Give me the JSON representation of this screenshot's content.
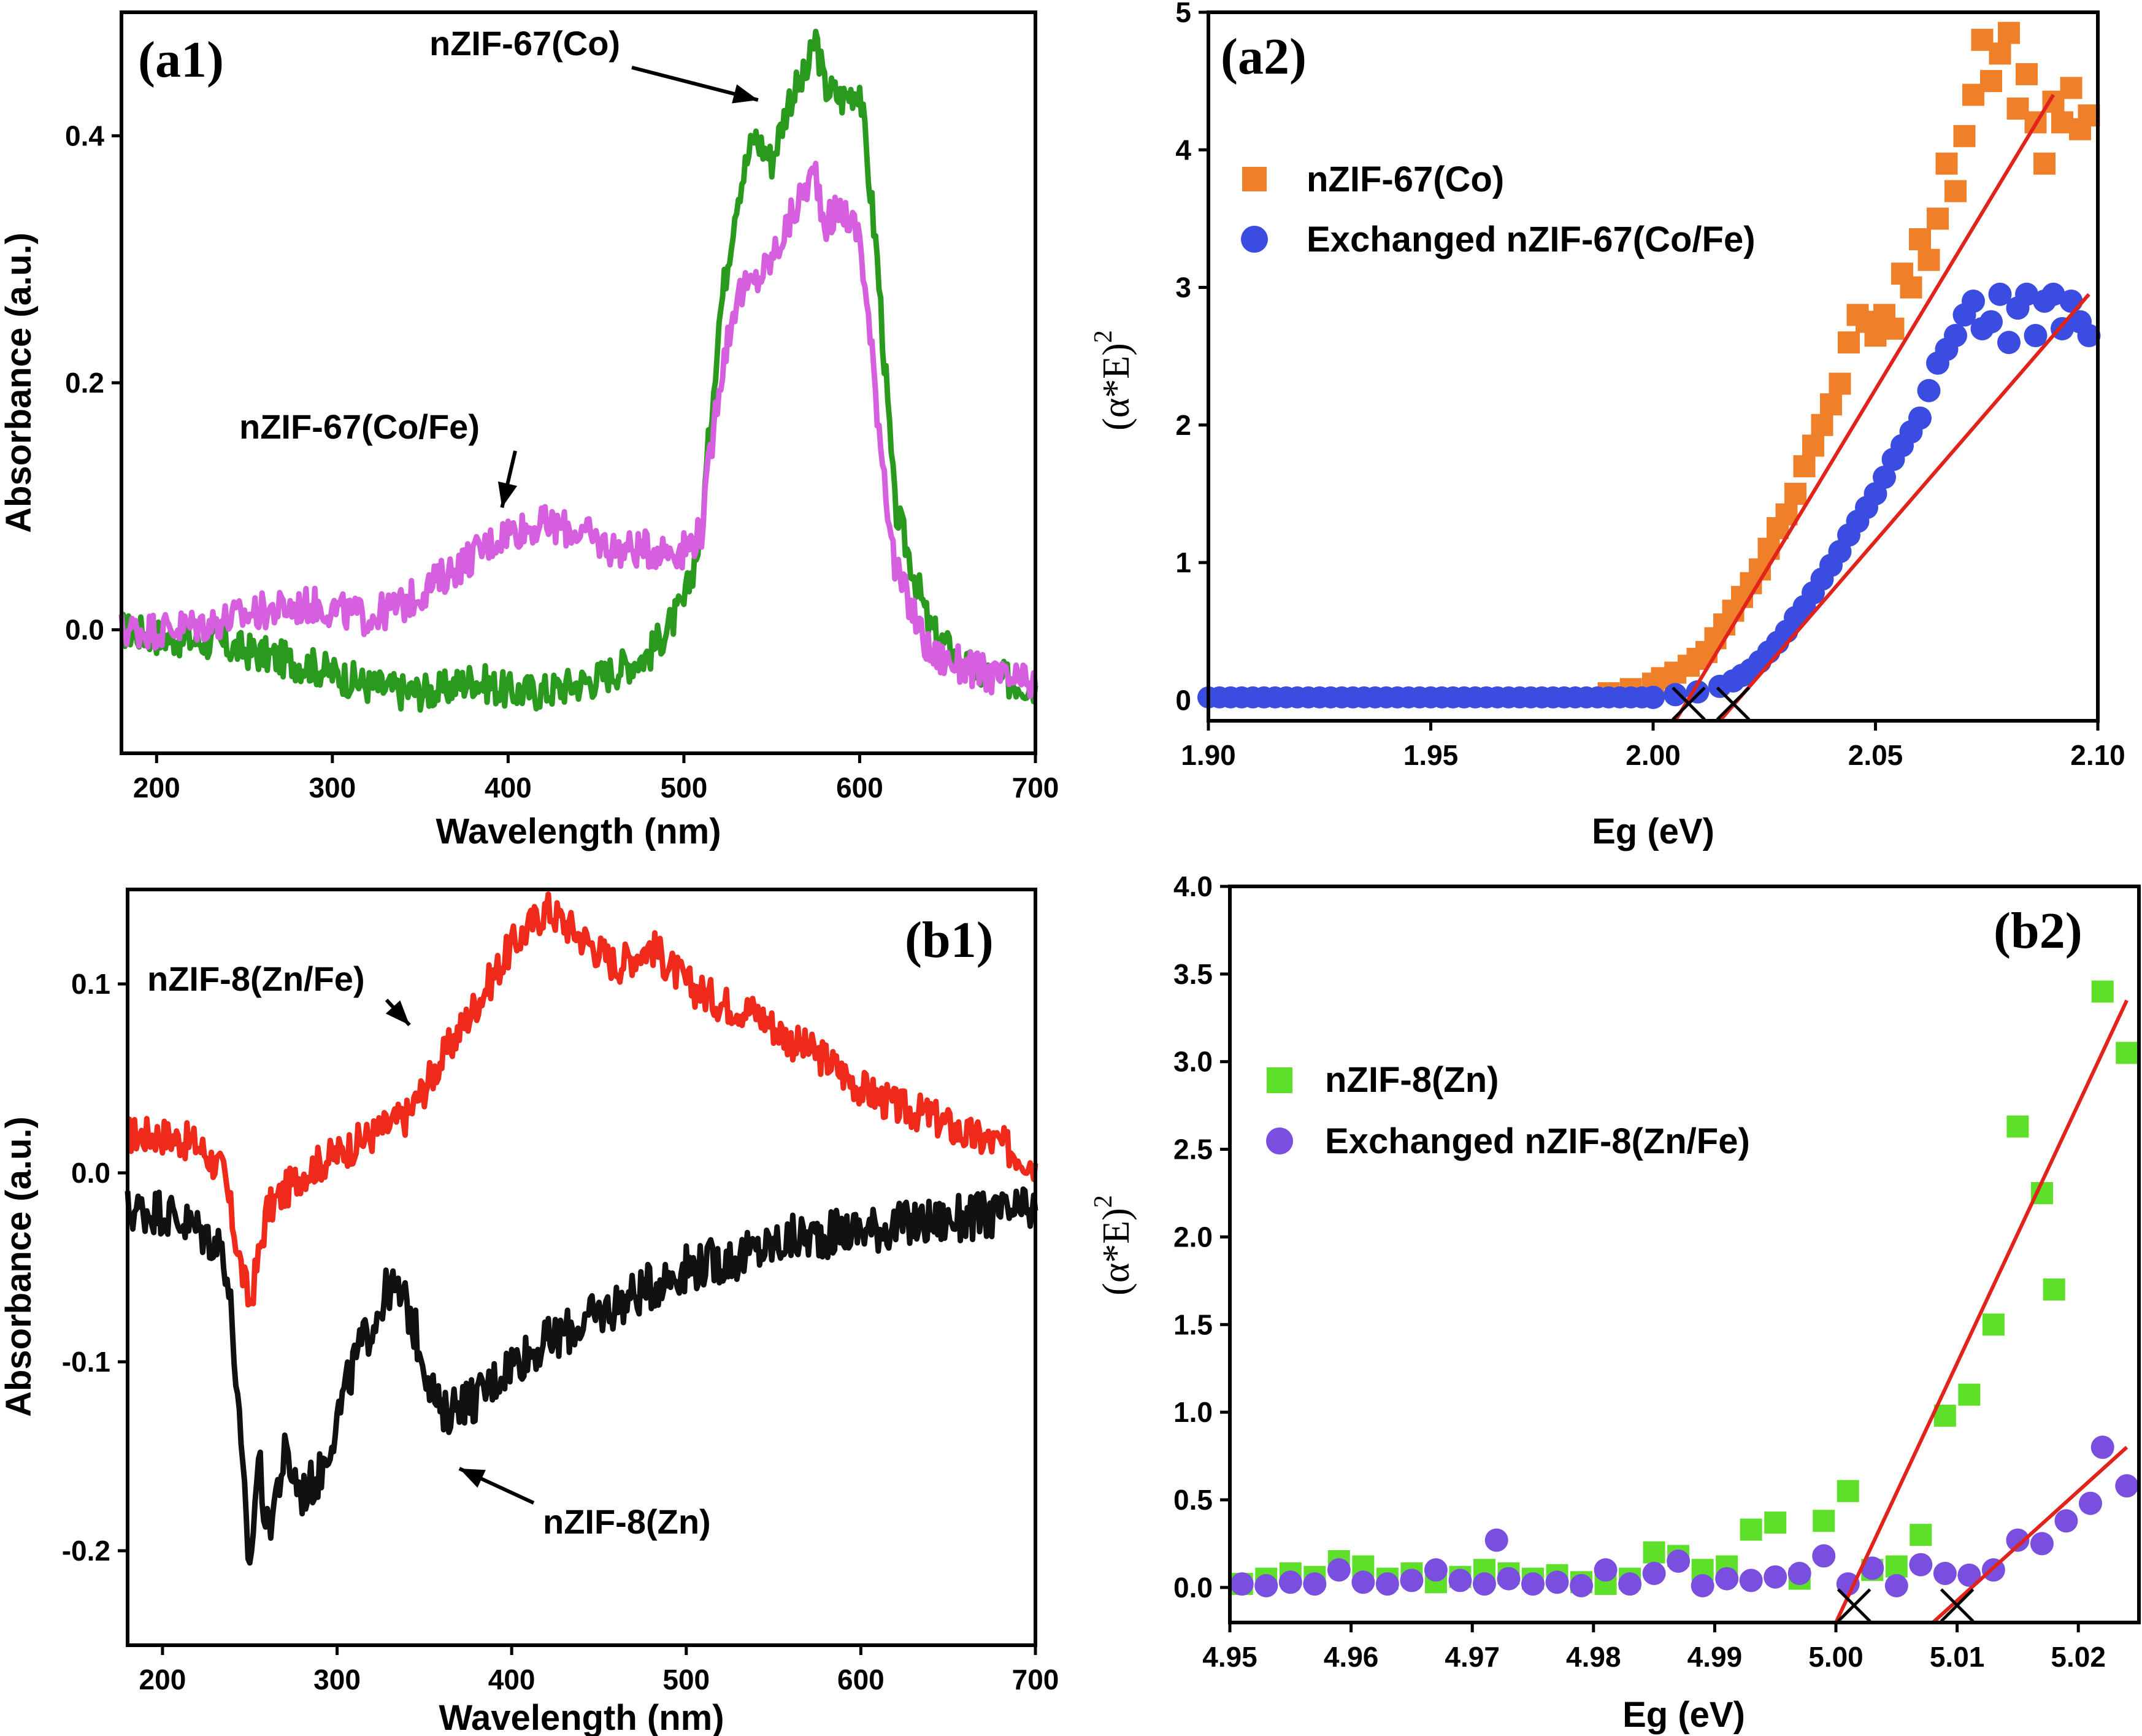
{
  "chart_data": [
    {
      "id": "a1",
      "type": "line",
      "panel_label": "(a1)",
      "xlabel": "Wavelength (nm)",
      "ylabel": "Absorbance (a.u.)",
      "xlim": [
        180,
        700
      ],
      "ylim": [
        -0.1,
        0.5
      ],
      "xticks": [
        200,
        300,
        400,
        500,
        600,
        700
      ],
      "yticks": [
        0.0,
        0.2,
        0.4
      ],
      "ytick_labels": [
        "0.0",
        "0.2",
        "0.4"
      ],
      "series": [
        {
          "name": "nZIF-67(Co)",
          "color": "#2a9a1f",
          "x": [
            180,
            200,
            230,
            260,
            290,
            320,
            340,
            360,
            380,
            400,
            420,
            450,
            480,
            500,
            510,
            520,
            530,
            540,
            550,
            560,
            570,
            575,
            580,
            590,
            600,
            610,
            620,
            640,
            660,
            680,
            700
          ],
          "y": [
            0.0,
            -0.005,
            -0.01,
            -0.02,
            -0.03,
            -0.045,
            -0.05,
            -0.05,
            -0.04,
            -0.05,
            -0.05,
            -0.04,
            -0.02,
            0.02,
            0.08,
            0.25,
            0.35,
            0.4,
            0.38,
            0.43,
            0.45,
            0.48,
            0.44,
            0.43,
            0.44,
            0.3,
            0.1,
            0.0,
            -0.03,
            -0.04,
            -0.045
          ]
        },
        {
          "name": "nZIF-67(Co/Fe)",
          "color": "#d65fe0",
          "x": [
            180,
            200,
            230,
            260,
            290,
            320,
            340,
            360,
            380,
            400,
            420,
            440,
            460,
            480,
            500,
            510,
            520,
            530,
            540,
            550,
            560,
            570,
            575,
            580,
            590,
            600,
            610,
            620,
            640,
            660,
            680,
            700
          ],
          "y": [
            0.0,
            0.0,
            0.005,
            0.015,
            0.02,
            0.01,
            0.02,
            0.04,
            0.06,
            0.08,
            0.085,
            0.08,
            0.065,
            0.065,
            0.065,
            0.08,
            0.2,
            0.27,
            0.28,
            0.3,
            0.33,
            0.36,
            0.37,
            0.33,
            0.34,
            0.32,
            0.18,
            0.05,
            -0.02,
            -0.03,
            -0.04,
            -0.045
          ]
        }
      ],
      "annotations": [
        {
          "text": "nZIF-67(Co)",
          "target": [
            545,
            0.425
          ]
        },
        {
          "text": "nZIF-67(Co/Fe)",
          "target": [
            400,
            0.093
          ]
        }
      ]
    },
    {
      "id": "a2",
      "type": "scatter",
      "panel_label": "(a2)",
      "xlabel": "Eg (eV)",
      "ylabel": "(α*E)",
      "ylabel_sup": "2",
      "xlim": [
        1.9,
        2.1
      ],
      "ylim": [
        -0.15,
        5
      ],
      "xticks": [
        1.9,
        1.95,
        2.0,
        2.05,
        2.1
      ],
      "xtick_labels": [
        "1.90",
        "1.95",
        "2.00",
        "2.05",
        "2.10"
      ],
      "yticks": [
        0,
        1,
        2,
        3,
        4,
        5
      ],
      "series": [
        {
          "name": "nZIF-67(Co)",
          "color": "#f07f2a",
          "marker": "square",
          "x": [
            1.99,
            1.995,
            2.0,
            2.002,
            2.005,
            2.008,
            2.01,
            2.012,
            2.014,
            2.016,
            2.018,
            2.02,
            2.022,
            2.024,
            2.026,
            2.028,
            2.03,
            2.032,
            2.034,
            2.036,
            2.038,
            2.04,
            2.042,
            2.044,
            2.046,
            2.048,
            2.05,
            2.052,
            2.054,
            2.056,
            2.058,
            2.06,
            2.062,
            2.064,
            2.066,
            2.068,
            2.07,
            2.072,
            2.074,
            2.076,
            2.078,
            2.08,
            2.082,
            2.084,
            2.086,
            2.088,
            2.09,
            2.092,
            2.094,
            2.096,
            2.098
          ],
          "y": [
            0.05,
            0.08,
            0.12,
            0.16,
            0.2,
            0.25,
            0.3,
            0.35,
            0.45,
            0.55,
            0.65,
            0.75,
            0.85,
            0.95,
            1.1,
            1.25,
            1.35,
            1.5,
            1.7,
            1.85,
            2.0,
            2.15,
            2.3,
            2.6,
            2.8,
            2.75,
            2.65,
            2.8,
            2.7,
            3.1,
            3.0,
            3.35,
            3.2,
            3.5,
            3.9,
            3.7,
            4.1,
            4.4,
            4.8,
            4.5,
            4.7,
            4.85,
            4.3,
            4.55,
            4.2,
            3.9,
            4.35,
            4.2,
            4.45,
            4.15,
            4.25
          ]
        },
        {
          "name": "Exchanged nZIF-67(Co/Fe)",
          "color": "#3b4de0",
          "marker": "circle",
          "x": [
            2.0,
            2.005,
            2.01,
            2.015,
            2.018,
            2.02,
            2.022,
            2.024,
            2.026,
            2.028,
            2.03,
            2.032,
            2.034,
            2.036,
            2.038,
            2.04,
            2.042,
            2.044,
            2.046,
            2.048,
            2.05,
            2.052,
            2.054,
            2.056,
            2.058,
            2.06,
            2.062,
            2.064,
            2.066,
            2.068,
            2.07,
            2.072,
            2.074,
            2.076,
            2.078,
            2.08,
            2.082,
            2.084,
            2.086,
            2.088,
            2.09,
            2.092,
            2.094,
            2.096,
            2.098
          ],
          "y": [
            0.02,
            0.04,
            0.06,
            0.1,
            0.14,
            0.18,
            0.22,
            0.28,
            0.35,
            0.42,
            0.5,
            0.6,
            0.68,
            0.78,
            0.88,
            0.98,
            1.08,
            1.2,
            1.3,
            1.4,
            1.5,
            1.62,
            1.75,
            1.85,
            1.95,
            2.05,
            2.25,
            2.45,
            2.55,
            2.65,
            2.8,
            2.9,
            2.7,
            2.75,
            2.95,
            2.6,
            2.85,
            2.95,
            2.65,
            2.9,
            2.95,
            2.7,
            2.9,
            2.75,
            2.65
          ]
        }
      ],
      "fit_lines": [
        {
          "color": "#e0241b",
          "x": [
            2.005,
            2.09
          ],
          "y": [
            -0.15,
            4.4
          ]
        },
        {
          "color": "#e0241b",
          "x": [
            2.015,
            2.098
          ],
          "y": [
            -0.15,
            2.95
          ]
        }
      ],
      "intercepts": [
        2.008,
        2.018
      ],
      "legend_position": "upper-left"
    },
    {
      "id": "b1",
      "type": "line",
      "panel_label": "(b1)",
      "xlabel": "Wavelength (nm)",
      "ylabel": "Absorbance (a.u.)",
      "xlim": [
        180,
        700
      ],
      "ylim": [
        -0.25,
        0.15
      ],
      "xticks": [
        200,
        300,
        400,
        500,
        600,
        700
      ],
      "yticks": [
        -0.2,
        -0.1,
        0.0,
        0.1
      ],
      "ytick_labels": [
        "-0.2",
        "-0.1",
        "0.0",
        "0.1"
      ],
      "series": [
        {
          "name": "nZIF-8(Zn/Fe)",
          "color": "#f02a1a",
          "x": [
            180,
            200,
            220,
            235,
            245,
            250,
            260,
            280,
            300,
            320,
            340,
            360,
            380,
            400,
            420,
            440,
            460,
            480,
            500,
            520,
            540,
            560,
            580,
            600,
            620,
            640,
            660,
            680,
            700
          ],
          "y": [
            0.02,
            0.02,
            0.015,
            0.0,
            -0.05,
            -0.07,
            -0.02,
            0.0,
            0.01,
            0.02,
            0.03,
            0.06,
            0.09,
            0.12,
            0.14,
            0.125,
            0.11,
            0.12,
            0.1,
            0.09,
            0.085,
            0.07,
            0.06,
            0.045,
            0.035,
            0.03,
            0.02,
            0.015,
            0.005
          ]
        },
        {
          "name": "nZIF-8(Zn)",
          "color": "#111111",
          "x": [
            180,
            200,
            220,
            235,
            240,
            245,
            250,
            255,
            260,
            270,
            280,
            290,
            300,
            310,
            320,
            330,
            340,
            350,
            360,
            370,
            380,
            400,
            420,
            440,
            460,
            480,
            500,
            530,
            560,
            600,
            650,
            700
          ],
          "y": [
            -0.02,
            -0.02,
            -0.03,
            -0.04,
            -0.08,
            -0.15,
            -0.21,
            -0.15,
            -0.19,
            -0.15,
            -0.17,
            -0.16,
            -0.13,
            -0.1,
            -0.08,
            -0.06,
            -0.07,
            -0.1,
            -0.13,
            -0.12,
            -0.12,
            -0.1,
            -0.09,
            -0.08,
            -0.07,
            -0.06,
            -0.05,
            -0.045,
            -0.035,
            -0.03,
            -0.025,
            -0.02
          ]
        }
      ],
      "annotations": [
        {
          "text": "nZIF-8(Zn/Fe)",
          "target": [
            345,
            0.075
          ]
        },
        {
          "text": "nZIF-8(Zn)",
          "target": [
            363,
            -0.15
          ]
        }
      ]
    },
    {
      "id": "b2",
      "type": "scatter",
      "panel_label": "(b2)",
      "xlabel": "Eg (eV)",
      "ylabel": "(α*E)",
      "ylabel_sup": "2",
      "xlim": [
        4.95,
        5.025
      ],
      "ylim": [
        -0.2,
        4.0
      ],
      "xticks": [
        4.95,
        4.96,
        4.97,
        4.98,
        4.99,
        5.0,
        5.01,
        5.02
      ],
      "xtick_labels": [
        "4.95",
        "4.96",
        "4.97",
        "4.98",
        "4.99",
        "5.00",
        "5.01",
        "5.02"
      ],
      "yticks": [
        0.0,
        0.5,
        1.0,
        1.5,
        2.0,
        2.5,
        3.0,
        3.5,
        4.0
      ],
      "ytick_labels": [
        "0.0",
        "0.5",
        "1.0",
        "1.5",
        "2.0",
        "2.5",
        "3.0",
        "3.5",
        "4.0"
      ],
      "series": [
        {
          "name": "nZIF-8(Zn)",
          "color": "#5ee02a",
          "marker": "square",
          "x": [
            4.951,
            4.953,
            4.955,
            4.957,
            4.959,
            4.961,
            4.963,
            4.965,
            4.967,
            4.969,
            4.971,
            4.973,
            4.975,
            4.977,
            4.979,
            4.981,
            4.983,
            4.985,
            4.987,
            4.989,
            4.991,
            4.993,
            4.995,
            4.997,
            4.999,
            5.001,
            5.003,
            5.005,
            5.007,
            5.009,
            5.011,
            5.013,
            5.015,
            5.017,
            5.018,
            5.022,
            5.024
          ],
          "y": [
            0.02,
            0.05,
            0.08,
            0.06,
            0.15,
            0.12,
            0.05,
            0.08,
            0.03,
            0.06,
            0.1,
            0.08,
            0.05,
            0.07,
            0.03,
            0.02,
            0.05,
            0.2,
            0.18,
            0.1,
            0.12,
            0.33,
            0.37,
            0.05,
            0.38,
            0.55,
            0.1,
            0.12,
            0.3,
            0.98,
            1.1,
            1.5,
            2.63,
            2.25,
            1.7,
            3.4,
            3.05
          ]
        },
        {
          "name": "Exchanged nZIF-8(Zn/Fe)",
          "color": "#7a4fe0",
          "marker": "circle",
          "x": [
            4.951,
            4.953,
            4.955,
            4.957,
            4.959,
            4.961,
            4.963,
            4.965,
            4.967,
            4.969,
            4.971,
            4.972,
            4.973,
            4.975,
            4.977,
            4.979,
            4.981,
            4.983,
            4.985,
            4.987,
            4.989,
            4.991,
            4.993,
            4.995,
            4.997,
            4.999,
            5.001,
            5.003,
            5.005,
            5.007,
            5.009,
            5.011,
            5.013,
            5.015,
            5.017,
            5.019,
            5.021,
            5.022,
            5.024
          ],
          "y": [
            0.02,
            0.01,
            0.03,
            0.02,
            0.1,
            0.03,
            0.02,
            0.04,
            0.1,
            0.04,
            0.02,
            0.27,
            0.05,
            0.02,
            0.03,
            0.01,
            0.1,
            0.02,
            0.08,
            0.15,
            0.01,
            0.05,
            0.04,
            0.06,
            0.08,
            0.18,
            0.02,
            0.11,
            0.01,
            0.13,
            0.08,
            0.07,
            0.1,
            0.27,
            0.25,
            0.38,
            0.48,
            0.8,
            0.58
          ]
        }
      ],
      "fit_lines": [
        {
          "color": "#e0241b",
          "x": [
            5.0,
            5.024
          ],
          "y": [
            -0.2,
            3.35
          ]
        },
        {
          "color": "#e0241b",
          "x": [
            5.008,
            5.024
          ],
          "y": [
            -0.2,
            0.8
          ]
        }
      ],
      "intercepts": [
        5.0015,
        5.01
      ],
      "legend_position": "center-left"
    }
  ]
}
